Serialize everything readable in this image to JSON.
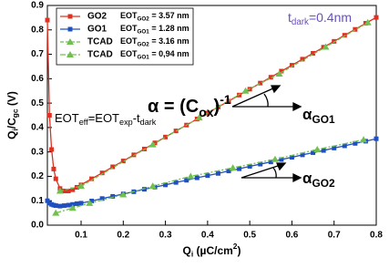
{
  "chart_data": {
    "type": "line",
    "y_label": [
      {
        "t": "Q"
      },
      {
        "t": "i",
        "sub": true
      },
      {
        "t": "/C"
      },
      {
        "t": "gc",
        "sub": true
      },
      {
        "t": " (V)"
      }
    ],
    "x_label": [
      {
        "t": "Q"
      },
      {
        "t": "i",
        "sub": true
      },
      {
        "t": " (µC/cm"
      },
      {
        "t": "2",
        "sup": true
      },
      {
        "t": ")"
      }
    ],
    "xlim": [
      0.02,
      0.8
    ],
    "ylim": [
      0,
      0.9
    ],
    "xticks": [
      0.1,
      0.2,
      0.3,
      0.4,
      0.5,
      0.6,
      0.7,
      0.8
    ],
    "yticks": [
      {
        "value": 0,
        "label": "0.0"
      },
      0.1,
      0.2,
      0.3,
      0.4,
      0.5,
      0.6,
      0.7,
      0.8,
      0.9
    ],
    "legend": "upper left",
    "series": [
      {
        "name": "GO2",
        "label": [
          {
            "t": "EOT"
          },
          {
            "t": "GO2",
            "sub": true
          },
          {
            "t": " = 3.57 nm"
          }
        ],
        "color": "#e03020",
        "marker": "square",
        "dash": "solid",
        "x": [
          0.02,
          0.025,
          0.03,
          0.035,
          0.04,
          0.05,
          0.06,
          0.07,
          0.08,
          0.09,
          0.1,
          0.125,
          0.15,
          0.175,
          0.2,
          0.225,
          0.25,
          0.275,
          0.3,
          0.325,
          0.35,
          0.375,
          0.4,
          0.425,
          0.45,
          0.475,
          0.5,
          0.525,
          0.55,
          0.575,
          0.6,
          0.625,
          0.65,
          0.675,
          0.7,
          0.725,
          0.75,
          0.775,
          0.8
        ],
        "values": [
          0.84,
          0.45,
          0.31,
          0.23,
          0.19,
          0.15,
          0.14,
          0.14,
          0.145,
          0.155,
          0.165,
          0.19,
          0.214,
          0.239,
          0.263,
          0.288,
          0.312,
          0.337,
          0.361,
          0.386,
          0.41,
          0.435,
          0.459,
          0.484,
          0.508,
          0.533,
          0.557,
          0.582,
          0.606,
          0.631,
          0.655,
          0.68,
          0.704,
          0.729,
          0.753,
          0.778,
          0.802,
          0.827,
          0.851
        ]
      },
      {
        "name": "GO1",
        "label": [
          {
            "t": "EOT"
          },
          {
            "t": "GO1",
            "sub": true
          },
          {
            "t": " = 1.28 nm"
          }
        ],
        "color": "#2050c0",
        "marker": "square",
        "dash": "solid",
        "x": [
          0.02,
          0.025,
          0.03,
          0.035,
          0.04,
          0.05,
          0.06,
          0.07,
          0.08,
          0.09,
          0.1,
          0.125,
          0.15,
          0.175,
          0.2,
          0.225,
          0.25,
          0.275,
          0.3,
          0.325,
          0.35,
          0.375,
          0.4,
          0.425,
          0.45,
          0.475,
          0.5,
          0.525,
          0.55,
          0.575,
          0.6,
          0.625,
          0.65,
          0.675,
          0.7,
          0.725,
          0.75,
          0.775,
          0.8
        ],
        "values": [
          0.1,
          0.09,
          0.085,
          0.082,
          0.08,
          0.078,
          0.08,
          0.082,
          0.085,
          0.088,
          0.09,
          0.099,
          0.109,
          0.118,
          0.128,
          0.137,
          0.147,
          0.156,
          0.165,
          0.175,
          0.184,
          0.194,
          0.203,
          0.212,
          0.222,
          0.231,
          0.241,
          0.25,
          0.259,
          0.269,
          0.278,
          0.288,
          0.297,
          0.306,
          0.316,
          0.325,
          0.335,
          0.344,
          0.354
        ]
      },
      {
        "name": "TCAD",
        "label": [
          {
            "t": "EOT"
          },
          {
            "t": "GO2",
            "sub": true
          },
          {
            "t": " = 3.16 nm"
          }
        ],
        "color": "#70c050",
        "marker": "triangle",
        "dash": "dashed",
        "x": [
          0.05,
          0.1,
          0.27,
          0.38,
          0.49,
          0.57,
          0.68,
          0.78
        ],
        "values": [
          0.14,
          0.16,
          0.33,
          0.44,
          0.55,
          0.62,
          0.73,
          0.83
        ]
      },
      {
        "name": "TCAD",
        "label": [
          {
            "t": "EOT"
          },
          {
            "t": "GO1",
            "sub": true
          },
          {
            "t": " = 0,94 nm"
          }
        ],
        "color": "#70c050",
        "marker": "triangle",
        "dash": "dashdot",
        "x": [
          0.04,
          0.08,
          0.12,
          0.2,
          0.27,
          0.36,
          0.46,
          0.56,
          0.66,
          0.77
        ],
        "values": [
          0.05,
          0.07,
          0.09,
          0.125,
          0.16,
          0.2,
          0.235,
          0.27,
          0.31,
          0.35
        ]
      }
    ],
    "annotations": [
      {
        "parts": [
          {
            "t": "t"
          },
          {
            "t": "dark",
            "sub": true
          },
          {
            "t": "=0.4nm"
          }
        ],
        "color": "#6a4fbf"
      },
      {
        "parts": [
          {
            "t": "α = (C"
          },
          {
            "t": "ox",
            "sub": true
          },
          {
            "t": ")"
          },
          {
            "t": "-1",
            "sup": true
          }
        ],
        "color": "#000000"
      },
      {
        "parts": [
          {
            "t": "EOT"
          },
          {
            "t": "eff",
            "sub": true
          },
          {
            "t": "=EOT"
          },
          {
            "t": "exp",
            "sub": true
          },
          {
            "t": "-t"
          },
          {
            "t": "dark",
            "sub": true
          }
        ],
        "color": "#000000"
      },
      {
        "parts": [
          {
            "t": "α"
          },
          {
            "t": "GO1",
            "sub": true
          }
        ],
        "color": "#000000"
      },
      {
        "parts": [
          {
            "t": "α"
          },
          {
            "t": "GO2",
            "sub": true
          }
        ],
        "color": "#000000"
      }
    ]
  }
}
